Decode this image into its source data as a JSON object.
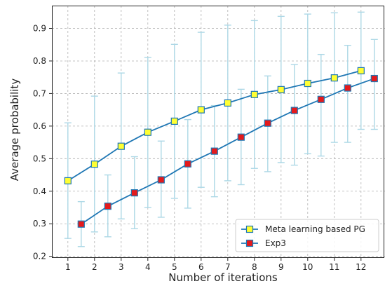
{
  "chart_data": {
    "type": "line",
    "title": "",
    "xlabel": "Number of iterations",
    "ylabel": "Average probability",
    "xlim": [
      0.4,
      12.9
    ],
    "ylim": [
      0.195,
      0.97
    ],
    "x_ticks": [
      1,
      2,
      3,
      4,
      5,
      6,
      7,
      8,
      9,
      10,
      11,
      12
    ],
    "y_ticks": [
      0.2,
      0.3,
      0.4,
      0.5,
      0.6,
      0.7,
      0.8,
      0.9
    ],
    "grid": true,
    "legend_position": "bottom-right",
    "series": [
      {
        "name": "Meta learning based PG",
        "color": "#1f77b4",
        "marker_color": "#ffff33",
        "errorbar_color": "#add8e6",
        "x": [
          1,
          2,
          3,
          4,
          5,
          6,
          7,
          8,
          9,
          10,
          11,
          12
        ],
        "y": [
          0.432,
          0.483,
          0.538,
          0.581,
          0.615,
          0.65,
          0.671,
          0.697,
          0.712,
          0.731,
          0.748,
          0.77
        ],
        "err_low": [
          0.255,
          0.275,
          0.315,
          0.35,
          0.378,
          0.412,
          0.432,
          0.47,
          0.488,
          0.515,
          0.55,
          0.59
        ],
        "err_high": [
          0.61,
          0.692,
          0.763,
          0.811,
          0.851,
          0.888,
          0.91,
          0.924,
          0.937,
          0.944,
          0.948,
          0.95
        ]
      },
      {
        "name": "Exp3",
        "color": "#1f77b4",
        "marker_color": "#e41a1c",
        "errorbar_color": "#add8e6",
        "x": [
          1.5,
          2.5,
          3.5,
          4.5,
          5.5,
          6.5,
          7.5,
          8.5,
          9.5,
          10.5,
          11.5,
          12.5
        ],
        "y": [
          0.299,
          0.354,
          0.395,
          0.435,
          0.484,
          0.523,
          0.566,
          0.609,
          0.648,
          0.682,
          0.717,
          0.746
        ],
        "err_low": [
          0.23,
          0.26,
          0.285,
          0.32,
          0.348,
          0.383,
          0.42,
          0.46,
          0.48,
          0.508,
          0.55,
          0.59
        ],
        "err_high": [
          0.368,
          0.45,
          0.506,
          0.554,
          0.62,
          0.663,
          0.713,
          0.754,
          0.789,
          0.82,
          0.848,
          0.866
        ]
      }
    ]
  }
}
